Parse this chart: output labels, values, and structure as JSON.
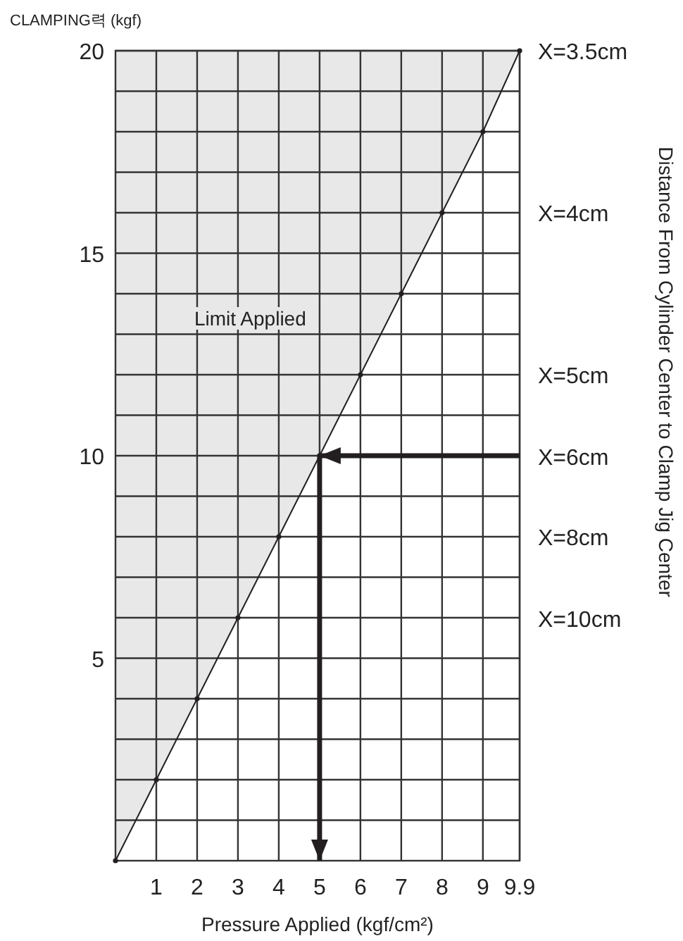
{
  "chart_data": {
    "type": "line",
    "xlabel": "Pressure Applied (kgf/cm²)",
    "ylabel": "CLAMPING력 (kgf)",
    "annotations": [
      "Limit Applied",
      "X=3.5cm",
      "X=4cm",
      "X=5cm",
      "X=6cm",
      "X=8cm",
      "X=10cm",
      "Distance From Cylinder Center to Clamp Jig Center"
    ],
    "xlim": [
      0,
      9.9
    ],
    "xticks": [
      1,
      2,
      3,
      4,
      5,
      6,
      7,
      8,
      9,
      9.9
    ],
    "ylim": [
      0,
      20
    ],
    "yticks": [
      {
        "value": 1,
        "label": null
      },
      {
        "value": 2,
        "label": null
      },
      {
        "value": 3,
        "label": null
      },
      {
        "value": 4,
        "label": null
      },
      5,
      {
        "value": 6,
        "label": null
      },
      {
        "value": 7,
        "label": null
      },
      {
        "value": 8,
        "label": null
      },
      {
        "value": 9,
        "label": null
      },
      10,
      {
        "value": 11,
        "label": null
      },
      {
        "value": 12,
        "label": null
      },
      {
        "value": 13,
        "label": null
      },
      {
        "value": 14,
        "label": null
      },
      15,
      {
        "value": 16,
        "label": null
      },
      {
        "value": 17,
        "label": null
      },
      {
        "value": 18,
        "label": null
      },
      {
        "value": 19,
        "label": null
      },
      20
    ],
    "grid": true,
    "series": [
      {
        "color": "#231f20",
        "marker": "circle",
        "x": [
          0,
          1,
          2,
          3,
          4,
          5,
          6,
          7,
          8,
          9,
          9.9
        ],
        "values": [
          0,
          2,
          4,
          6,
          8,
          10,
          12,
          14,
          16,
          18,
          20
        ],
        "lower": [
          0,
          2,
          4,
          6,
          8,
          10,
          12,
          14,
          16,
          18,
          20
        ],
        "upper": [
          20,
          20,
          20,
          20,
          20,
          20,
          20,
          20,
          20,
          20,
          20
        ]
      },
      {
        "color": "#231f20",
        "marker": "none",
        "x": [
          9.9,
          5,
          5
        ],
        "values": [
          10,
          10,
          0
        ]
      }
    ]
  }
}
